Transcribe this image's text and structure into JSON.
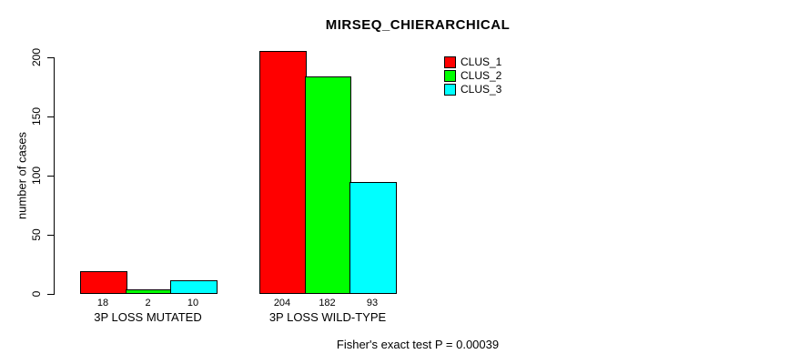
{
  "chart_data": {
    "type": "bar",
    "title": "MIRSEQ_CHIERARCHICAL",
    "ylabel": "number of cases",
    "xlabel": "",
    "categories": [
      "3P LOSS MUTATED",
      "3P LOSS WILD-TYPE"
    ],
    "series": [
      {
        "name": "CLUS_1",
        "color": "#ff0000",
        "values": [
          18,
          204
        ]
      },
      {
        "name": "CLUS_2",
        "color": "#00ff00",
        "values": [
          2,
          182
        ]
      },
      {
        "name": "CLUS_3",
        "color": "#00ffff",
        "values": [
          10,
          93
        ]
      }
    ],
    "bar_value_labels": [
      [
        18,
        2,
        10
      ],
      [
        204,
        182,
        93
      ]
    ],
    "yticks": [
      0,
      50,
      100,
      150,
      200
    ],
    "ylim": [
      0,
      200
    ],
    "grid": false,
    "legend_position": "top-right",
    "annotation": "Fisher's exact test P = 0.00039",
    "background_color": "#ffffff",
    "axis_color": "#000000"
  }
}
